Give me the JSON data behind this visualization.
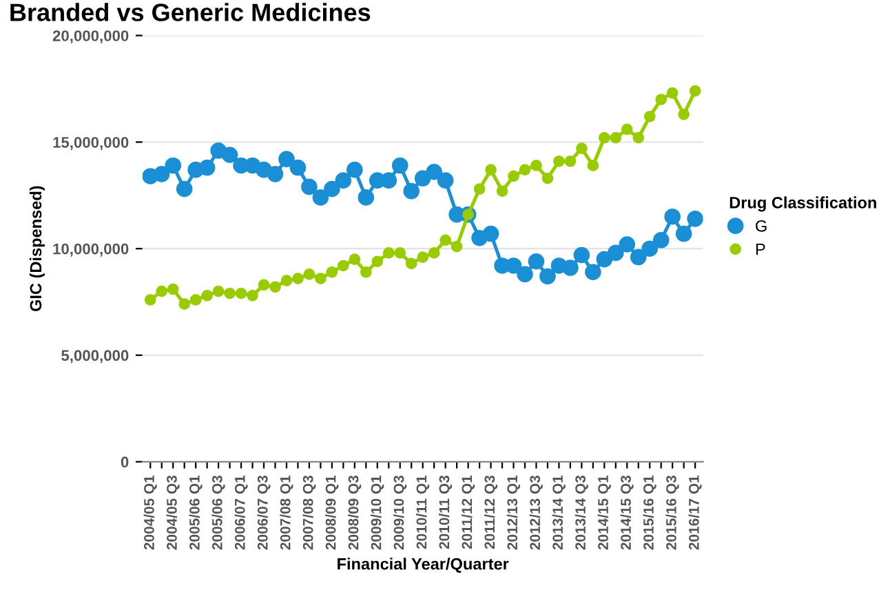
{
  "chart_data": {
    "type": "line",
    "title": "Branded vs Generic Medicines",
    "xlabel": "Financial Year/Quarter",
    "ylabel": "GIC (Dispensed)",
    "legend_title": "Drug Classification",
    "categories": [
      "2004/05 Q1",
      null,
      "2004/05 Q3",
      null,
      "2005/06 Q1",
      null,
      "2005/06 Q3",
      null,
      "2006/07 Q1",
      null,
      "2006/07 Q3",
      null,
      "2007/08 Q1",
      null,
      "2007/08 Q3",
      null,
      "2008/09 Q1",
      null,
      "2008/09 Q3",
      null,
      "2009/10 Q1",
      null,
      "2009/10 Q3",
      null,
      "2010/11 Q1",
      null,
      "2010/11 Q3",
      null,
      "2011/12 Q1",
      null,
      "2011/12 Q3",
      null,
      "2012/13 Q1",
      null,
      "2012/13 Q3",
      null,
      "2013/14 Q1",
      null,
      "2013/14 Q3",
      null,
      "2014/15 Q1",
      null,
      "2014/15 Q3",
      null,
      "2015/16 Q1",
      null,
      "2015/16 Q3",
      null,
      "2016/17 Q1"
    ],
    "series": [
      {
        "name": "G",
        "color": "#1a8fd6",
        "values": [
          13400000,
          13500000,
          13900000,
          12800000,
          13700000,
          13800000,
          14600000,
          14400000,
          13900000,
          13900000,
          13700000,
          13500000,
          14200000,
          13800000,
          12900000,
          12400000,
          12800000,
          13200000,
          13700000,
          12400000,
          13200000,
          13200000,
          13900000,
          12700000,
          13300000,
          13600000,
          13200000,
          11600000,
          11600000,
          10500000,
          10700000,
          9200000,
          9200000,
          8800000,
          9400000,
          8700000,
          9200000,
          9100000,
          9700000,
          8900000,
          9500000,
          9800000,
          10200000,
          9600000,
          10000000,
          10400000,
          11500000,
          10700000,
          11400000
        ]
      },
      {
        "name": "P",
        "color": "#99cc00",
        "values": [
          7600000,
          8000000,
          8100000,
          7400000,
          7600000,
          7800000,
          8000000,
          7900000,
          7900000,
          7800000,
          8300000,
          8200000,
          8500000,
          8600000,
          8800000,
          8600000,
          8900000,
          9200000,
          9500000,
          8900000,
          9400000,
          9800000,
          9800000,
          9300000,
          9600000,
          9800000,
          10400000,
          10100000,
          11600000,
          12800000,
          13700000,
          12700000,
          13400000,
          13700000,
          13900000,
          13300000,
          14100000,
          14100000,
          14700000,
          13900000,
          15200000,
          15200000,
          15600000,
          15200000,
          16200000,
          17000000,
          17300000,
          16300000,
          17400000
        ]
      }
    ],
    "ylim": [
      0,
      20000000
    ],
    "yticks": [
      {
        "value": 0,
        "label": "0"
      },
      {
        "value": 5000000,
        "label": "5,000,000"
      },
      {
        "value": 10000000,
        "label": "10,000,000"
      },
      {
        "value": 15000000,
        "label": "15,000,000"
      },
      {
        "value": 20000000,
        "label": "20,000,000"
      }
    ],
    "grid": "y",
    "legend": "right",
    "marker": "circle",
    "line_style": "solid"
  }
}
